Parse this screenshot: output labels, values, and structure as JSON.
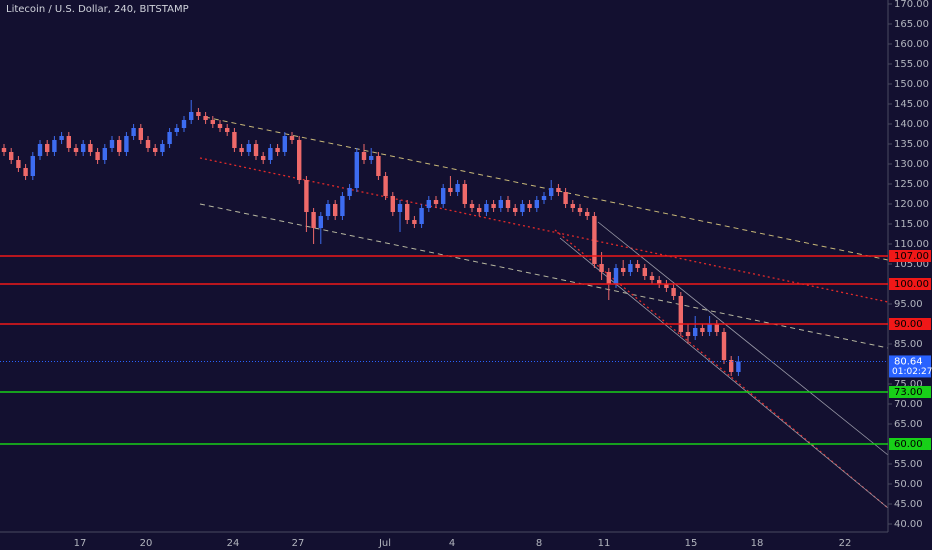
{
  "chart_data": {
    "type": "candlestick",
    "title": "Litecoin / U.S. Dollar, 240, BITSTAMP",
    "up_color": "#3d6cf0",
    "down_color": "#ef6a6a",
    "open": [
      134,
      133,
      131,
      129,
      127,
      132,
      135,
      133,
      136,
      137,
      134,
      133,
      135,
      133,
      131,
      134,
      136,
      133,
      137,
      139,
      136,
      134,
      133,
      135,
      138,
      139,
      141,
      143,
      142,
      141,
      140,
      139,
      138,
      134,
      133,
      135,
      132,
      131,
      134,
      133,
      137,
      136,
      126,
      118,
      114,
      117,
      120,
      117,
      122,
      124,
      133,
      131,
      132,
      127,
      122,
      118,
      120,
      116,
      115,
      119,
      121,
      120,
      124,
      123,
      125,
      120,
      119,
      118,
      120,
      119,
      121,
      119,
      118,
      120,
      119,
      121,
      122,
      124,
      123,
      120,
      119,
      118,
      117,
      105,
      103,
      100,
      104,
      103,
      105,
      104,
      102,
      101,
      100,
      99,
      97,
      88,
      87,
      89,
      88,
      90,
      88,
      81,
      78
    ],
    "high": [
      135,
      134,
      132,
      130,
      133,
      136,
      136,
      137,
      138,
      138,
      135,
      136,
      136,
      134,
      135,
      137,
      137,
      138,
      140,
      140,
      137,
      135,
      136,
      139,
      140,
      142,
      146,
      144,
      143,
      142,
      141,
      140,
      139,
      135,
      136,
      136,
      133,
      135,
      135,
      138,
      138,
      137,
      127,
      119,
      118,
      121,
      121,
      123,
      125,
      134,
      135,
      134,
      133,
      128,
      123,
      121,
      121,
      117,
      120,
      122,
      122,
      125,
      127,
      126,
      126,
      121,
      120,
      121,
      121,
      122,
      122,
      120,
      121,
      121,
      122,
      123,
      126,
      125,
      124,
      121,
      120,
      119,
      118,
      108,
      104,
      105,
      106,
      106,
      106,
      105,
      103,
      102,
      101,
      100,
      98,
      90,
      92,
      90,
      92,
      91,
      89,
      82,
      82
    ],
    "low": [
      132,
      130,
      128,
      126,
      126,
      131,
      132,
      132,
      135,
      133,
      132,
      132,
      132,
      130,
      130,
      133,
      132,
      132,
      136,
      135,
      133,
      132,
      132,
      134,
      137,
      138,
      140,
      141,
      140,
      139,
      138,
      137,
      133,
      132,
      132,
      131,
      130,
      130,
      132,
      132,
      135,
      125,
      113,
      110,
      110,
      116,
      116,
      116,
      121,
      123,
      130,
      130,
      126,
      121,
      117,
      113,
      115,
      114,
      114,
      118,
      119,
      119,
      122,
      122,
      119,
      118,
      117,
      117,
      118,
      118,
      118,
      117,
      117,
      118,
      118,
      120,
      121,
      122,
      119,
      118,
      117,
      116,
      104,
      101,
      96,
      99,
      102,
      102,
      103,
      101,
      100,
      99,
      98,
      96,
      87,
      85,
      86,
      87,
      87,
      87,
      80,
      77,
      77
    ],
    "close": [
      133,
      131,
      129,
      127,
      132,
      135,
      133,
      136,
      137,
      134,
      133,
      135,
      133,
      131,
      134,
      136,
      133,
      137,
      139,
      136,
      134,
      133,
      135,
      138,
      139,
      141,
      143,
      142,
      141,
      140,
      139,
      138,
      134,
      133,
      135,
      132,
      131,
      134,
      133,
      137,
      136,
      126,
      118,
      114,
      117,
      120,
      117,
      122,
      124,
      133,
      131,
      132,
      127,
      122,
      118,
      120,
      116,
      115,
      119,
      121,
      120,
      124,
      123,
      125,
      120,
      119,
      118,
      120,
      119,
      121,
      119,
      118,
      120,
      119,
      121,
      122,
      124,
      123,
      120,
      119,
      118,
      117,
      105,
      103,
      100,
      104,
      103,
      105,
      104,
      102,
      101,
      100,
      99,
      97,
      88,
      87,
      89,
      88,
      90,
      88,
      81,
      78,
      80.64
    ],
    "ylim": [
      40,
      170
    ],
    "yticks": [
      {
        "value": 40,
        "label": "40.00"
      },
      {
        "value": 45,
        "label": "45.00"
      },
      {
        "value": 50,
        "label": "50.00"
      },
      {
        "value": 55,
        "label": "55.00"
      },
      {
        "value": 65,
        "label": "65.00"
      },
      {
        "value": 70,
        "label": "70.00"
      },
      {
        "value": 75,
        "label": "75.00"
      },
      {
        "value": 85,
        "label": "85.00"
      },
      {
        "value": 95,
        "label": "95.00"
      },
      {
        "value": 105,
        "label": "105.00"
      },
      {
        "value": 110,
        "label": "110.00"
      },
      {
        "value": 115,
        "label": "115.00"
      },
      {
        "value": 120,
        "label": "120.00"
      },
      {
        "value": 125,
        "label": "125.00"
      },
      {
        "value": 130,
        "label": "130.00"
      },
      {
        "value": 135,
        "label": "135.00"
      },
      {
        "value": 140,
        "label": "140.00"
      },
      {
        "value": 145,
        "label": "145.00"
      },
      {
        "value": 150,
        "label": "150.00"
      },
      {
        "value": 155,
        "label": "155.00"
      },
      {
        "value": 160,
        "label": "160.00"
      },
      {
        "value": 165,
        "label": "165.00"
      },
      {
        "value": 170,
        "label": "170.00"
      }
    ],
    "xtick_labels": [
      "17",
      "20",
      "24",
      "27",
      "Jul",
      "4",
      "8",
      "11",
      "15",
      "18",
      "22"
    ],
    "levels": [
      {
        "value": 107,
        "label": "107.00",
        "color": "#f01818"
      },
      {
        "value": 100,
        "label": "100.00",
        "color": "#f01818"
      },
      {
        "value": 90,
        "label": "90.00",
        "color": "#f01818"
      },
      {
        "value": 73,
        "label": "73.00",
        "color": "#18d018"
      },
      {
        "value": 60,
        "label": "60.00",
        "color": "#18d018"
      }
    ],
    "last_price": 80.64,
    "last_price_color": "#2962ff",
    "countdown": "01:02:27"
  }
}
